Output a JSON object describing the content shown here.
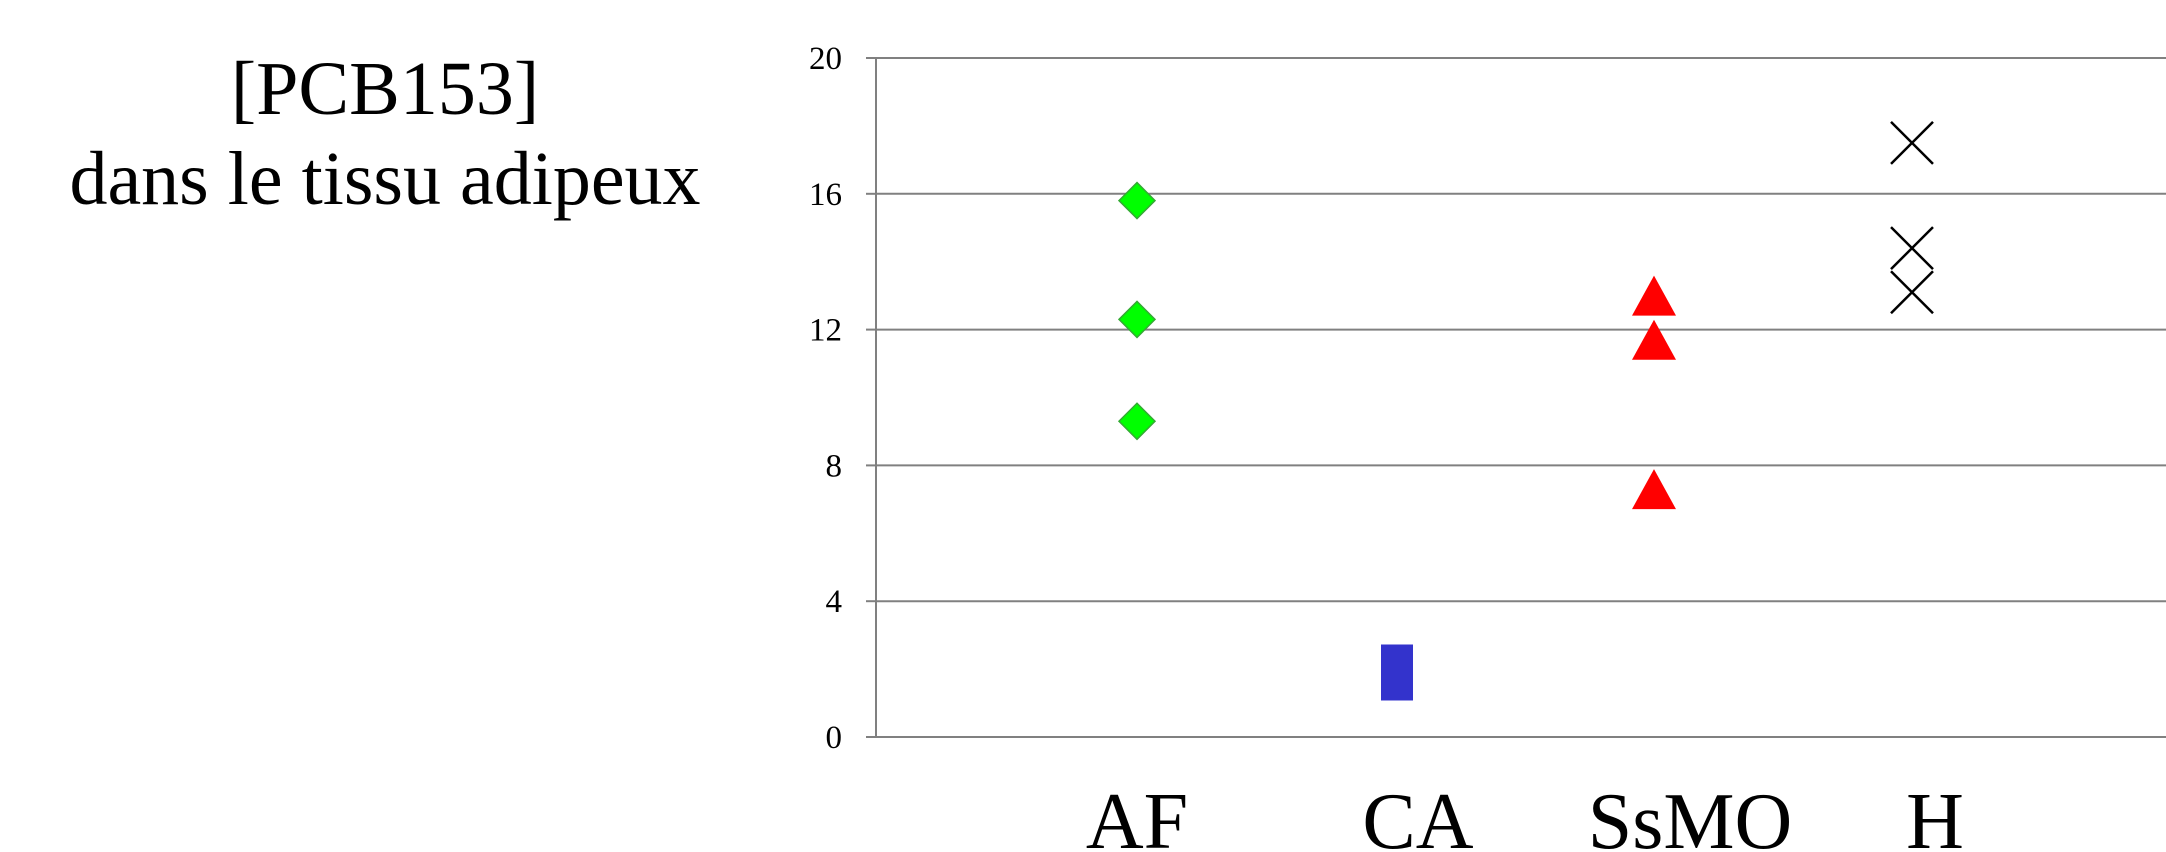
{
  "chart_data": {
    "type": "scatter",
    "title_lines": [
      "[PCB153]",
      "dans le tissu adipeux"
    ],
    "xlabel": "",
    "ylabel": "",
    "categories": [
      "AF",
      "CA",
      "SsMO",
      "H"
    ],
    "ylim": [
      0,
      20
    ],
    "yticks": [
      0,
      4,
      8,
      12,
      16,
      20
    ],
    "grid": true,
    "legend": "none",
    "series": [
      {
        "category": "AF",
        "marker": "diamond",
        "color": "#00ff00",
        "values": [
          15.8,
          12.3,
          9.3
        ]
      },
      {
        "category": "CA",
        "marker": "square",
        "color": "#3333cc",
        "values": [
          1.9
        ]
      },
      {
        "category": "SsMO",
        "marker": "triangle",
        "color": "#ff0000",
        "values": [
          13.0,
          11.7,
          7.3
        ]
      },
      {
        "category": "H",
        "marker": "x",
        "color": "#000000",
        "values": [
          17.5,
          14.4,
          13.1
        ]
      }
    ]
  }
}
